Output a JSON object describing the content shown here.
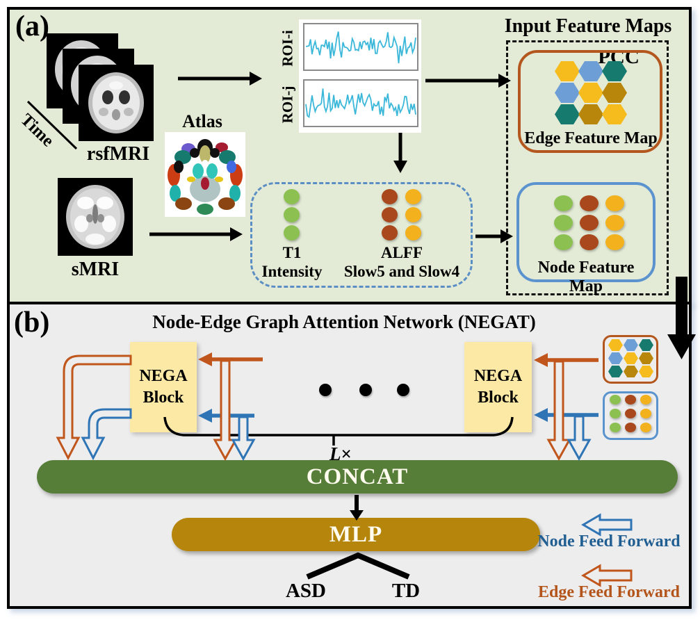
{
  "panel_a": {
    "label": "(a)",
    "time_label": "Time",
    "rsfmri_label": "rsfMRI",
    "atlas_label": "Atlas",
    "smri_label": "sMRI",
    "roi_i_label": "ROI-i",
    "roi_j_label": "ROI-j",
    "pcc_label": "PCC",
    "input_feature_maps_title": "Input Feature Maps",
    "edge_feature_map": {
      "label": "Edge Feature Map",
      "hex_colors": [
        [
          "gold",
          "blue",
          "teal"
        ],
        [
          "blue",
          "gold",
          "darkgold"
        ],
        [
          "teal",
          "darkgold",
          "gold"
        ]
      ]
    },
    "node_feature_map": {
      "label": "Node Feature Map",
      "dot_colors": [
        [
          "green",
          "brown",
          "yellow"
        ],
        [
          "green",
          "brown",
          "yellow"
        ],
        [
          "green",
          "brown",
          "yellow"
        ]
      ]
    },
    "t1": {
      "line1": "T1",
      "line2": "Intensity",
      "circle_colors": [
        "green",
        "green",
        "green"
      ]
    },
    "alff": {
      "line1": "ALFF",
      "line2": "Slow5 and Slow4",
      "col1_colors": [
        "brown",
        "brown",
        "brown"
      ],
      "col2_colors": [
        "yellow",
        "yellow",
        "yellow"
      ]
    }
  },
  "panel_b": {
    "label": "(b)",
    "title": "Node-Edge Graph Attention Network (NEGAT)",
    "nega_line1": "NEGA",
    "nega_line2": "Block",
    "l_label": "L",
    "times_label": "×",
    "concat_label": "CONCAT",
    "mlp_label": "MLP",
    "asd_label": "ASD",
    "td_label": "TD",
    "legend": [
      {
        "label": "Node Feed Forward",
        "color": "#215e92"
      },
      {
        "label": "Edge Feed Forward",
        "color": "#b3541a"
      }
    ]
  },
  "colors": {
    "gold": "#f6bb1c",
    "blue": "#6d9ed6",
    "teal": "#177a6e",
    "darkgold": "#b8860b",
    "green": "#8cc152",
    "brown": "#a8481c",
    "yellow": "#f2b11d"
  },
  "accents": {
    "panel_a_bg": "#e3ebd6",
    "panel_b_bg": "#ededed",
    "edge_border": "#b4571e",
    "node_border": "#5b93ce",
    "dashed_blue": "#5b8ec4",
    "nega_fill": "#fce9a6",
    "concat_green": "#567e38",
    "mlp_gold": "#b5860b",
    "arrow_orange": "#c0561c",
    "arrow_blue": "#2f75b5",
    "legend_blue": "#215e92",
    "legend_orange": "#b3541a",
    "wave_cyan": "#3ab7d9"
  }
}
